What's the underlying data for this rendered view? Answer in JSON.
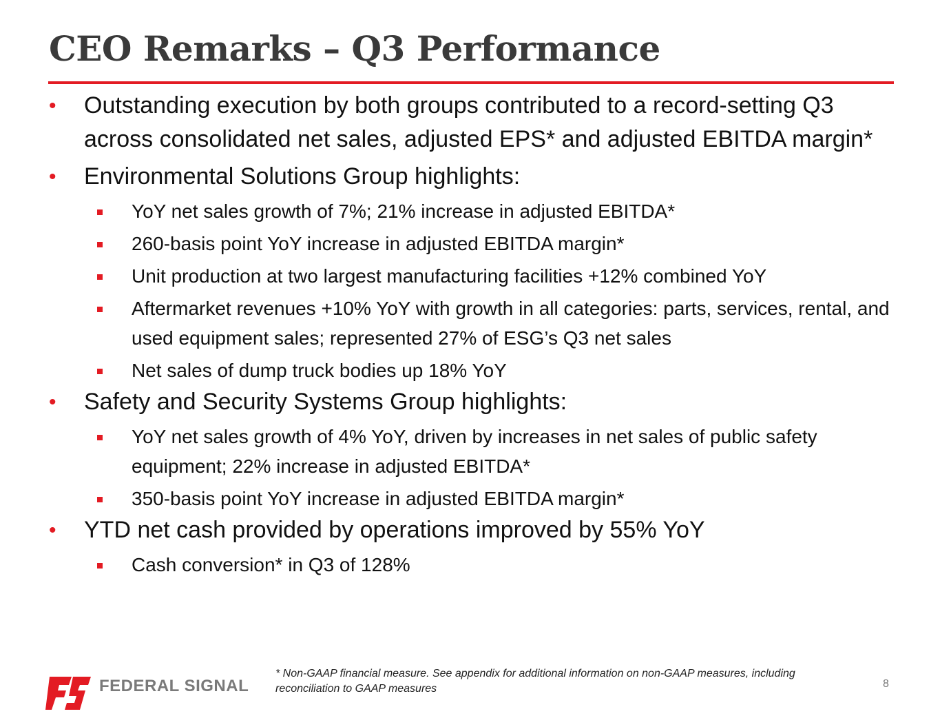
{
  "slide": {
    "title": "CEO Remarks – Q3 Performance",
    "page_number": "8",
    "footnote": "* Non-GAAP financial measure. See appendix for additional information on non-GAAP measures, including reconciliation to GAAP measures",
    "logo_text": "FEDERAL SIGNAL"
  },
  "bullets": [
    {
      "text": "Outstanding execution by both groups contributed to a record-setting Q3 across consolidated net sales, adjusted EPS* and adjusted EBITDA margin*",
      "sub": []
    },
    {
      "text": "Environmental Solutions Group highlights:",
      "sub": [
        "YoY net sales growth of 7%; 21% increase in adjusted EBITDA*",
        "260-basis point YoY increase in adjusted EBITDA margin*",
        "Unit production at two largest manufacturing facilities +12% combined YoY",
        "Aftermarket revenues +10% YoY with growth in all categories: parts, services, rental, and used equipment sales; represented 27% of ESG’s Q3 net sales",
        "Net sales of dump truck bodies up 18% YoY"
      ]
    },
    {
      "text": "Safety and Security Systems Group highlights:",
      "sub": [
        "YoY net sales growth of 4% YoY, driven by increases in net sales of public safety equipment; 22% increase in adjusted EBITDA*",
        "350-basis point YoY increase in adjusted EBITDA margin*"
      ]
    },
    {
      "text": "YTD net cash provided by operations improved by 55% YoY",
      "sub": [
        "Cash conversion* in Q3 of 128%"
      ]
    }
  ],
  "colors": {
    "accent": "#e31b23",
    "title": "#3a3a3a",
    "logo_gray": "#7a7a7a"
  }
}
